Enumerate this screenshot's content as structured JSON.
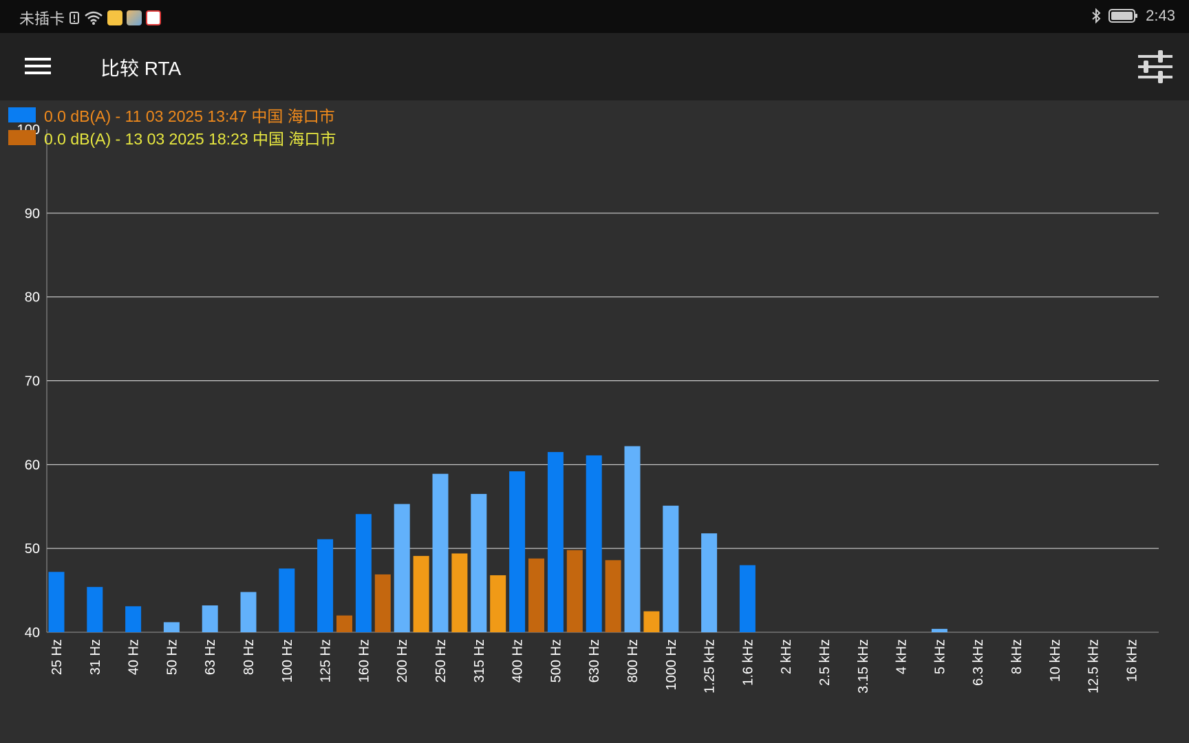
{
  "status_bar": {
    "carrier": "未插卡",
    "time": "2:43",
    "icons": [
      "sim-alert-icon",
      "wifi-icon",
      "notes-app-icon",
      "gallery-app-icon",
      "baidu-app-icon",
      "bluetooth-icon",
      "battery-icon"
    ]
  },
  "toolbar": {
    "title": "比较 RTA",
    "menu_icon": "hamburger-menu-icon",
    "settings_icon": "sliders-settings-icon"
  },
  "legend": [
    {
      "label": "0.0 dB(A) - 11 03 2025 13:47 中国 海口市",
      "swatch": "#0a7df2",
      "text_color": "#f08a1c"
    },
    {
      "label": "0.0 dB(A) - 13 03 2025 18:23 中国 海口市",
      "swatch": "#c4670f",
      "text_color": "#e8e840"
    }
  ],
  "colors": {
    "series1_dark": "#0a7df2",
    "series1_light": "#62b1fb",
    "series2_dark": "#c4670f",
    "series2_light": "#f09a17",
    "background": "#2f2f2f",
    "grid": "#e6e6e6"
  },
  "chart_data": {
    "type": "bar",
    "ylim": [
      40,
      100
    ],
    "yticks": [
      40,
      50,
      60,
      70,
      80,
      90,
      100
    ],
    "grid": true,
    "legend_position": "top-left",
    "categories": [
      "25 Hz",
      "31 Hz",
      "40 Hz",
      "50 Hz",
      "63 Hz",
      "80 Hz",
      "100 Hz",
      "125 Hz",
      "160 Hz",
      "200 Hz",
      "250 Hz",
      "315 Hz",
      "400 Hz",
      "500 Hz",
      "630 Hz",
      "800 Hz",
      "1000 Hz",
      "1.25 kHz",
      "1.6 kHz",
      "2 kHz",
      "2.5 kHz",
      "3.15 kHz",
      "4 kHz",
      "5 kHz",
      "6.3 kHz",
      "8 kHz",
      "10 kHz",
      "12.5 kHz",
      "16 kHz"
    ],
    "series": [
      {
        "name": "0.0 dB(A) - 11 03 2025 13:47 中国 海口市",
        "values": [
          47.2,
          45.4,
          43.1,
          41.2,
          43.2,
          44.8,
          47.6,
          51.1,
          54.1,
          55.3,
          58.9,
          56.5,
          59.2,
          61.5,
          61.1,
          62.2,
          55.1,
          51.8,
          48.0,
          40,
          40,
          40,
          40,
          40.4,
          40,
          40,
          40,
          40,
          40
        ]
      },
      {
        "name": "0.0 dB(A) - 13 03 2025 18:23 中国 海口市",
        "values": [
          40,
          40,
          40,
          40,
          40,
          40,
          40,
          42.0,
          46.9,
          49.1,
          49.4,
          46.8,
          48.8,
          49.8,
          48.6,
          42.5,
          40,
          40,
          40,
          40,
          40,
          40,
          40,
          40,
          40,
          40,
          40,
          40,
          40
        ]
      }
    ]
  }
}
